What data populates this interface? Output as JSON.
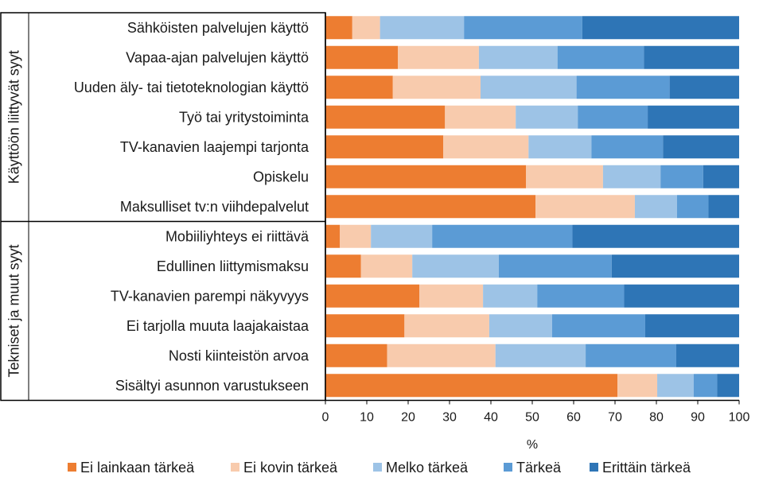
{
  "chart_data": {
    "type": "bar",
    "orientation": "horizontal",
    "stacked": true,
    "title": "",
    "xlabel": "%",
    "ylabel": "",
    "xlim": [
      0,
      100
    ],
    "xticks": [
      0,
      10,
      20,
      30,
      40,
      50,
      60,
      70,
      80,
      90,
      100
    ],
    "grid": false,
    "legend_position": "bottom",
    "groups": [
      {
        "label": "Käyttöön liittyvät syyt",
        "categories": [
          "Sähköisten palvelujen käyttö",
          "Vapaa-ajan palvelujen käyttö",
          "Uuden äly- tai tietoteknologian käyttö",
          "Työ tai yritystoiminta",
          "TV-kanavien laajempi tarjonta",
          "Opiskelu",
          "Maksulliset tv:n viihdepalvelut"
        ]
      },
      {
        "label": "Tekniset ja muut syyt",
        "categories": [
          "Mobiiliyhteys ei riittävä",
          "Edullinen liittymismaksu",
          "TV-kanavien parempi näkyvyys",
          "Ei tarjolla muuta laajakaistaa",
          "Nosti kiinteistön arvoa",
          "Sisältyi asunnon varustukseen"
        ]
      }
    ],
    "categories": [
      "Sähköisten palvelujen käyttö",
      "Vapaa-ajan palvelujen käyttö",
      "Uuden äly- tai tietoteknologian käyttö",
      "Työ tai yritystoiminta",
      "TV-kanavien laajempi tarjonta",
      "Opiskelu",
      "Maksulliset tv:n viihdepalvelut",
      "Mobiiliyhteys ei riittävä",
      "Edullinen liittymismaksu",
      "TV-kanavien parempi näkyvyys",
      "Ei tarjolla muuta laajakaistaa",
      "Nosti kiinteistön arvoa",
      "Sisältyi asunnon varustukseen"
    ],
    "series": [
      {
        "name": "Ei lainkaan tärkeä",
        "color": "#ED7D31",
        "values": [
          6.5,
          17.5,
          16.3,
          28.9,
          28.5,
          48.5,
          50.8,
          3.5,
          8.6,
          22.7,
          19.1,
          14.9,
          70.6
        ]
      },
      {
        "name": "Ei kovin tärkeä",
        "color": "#F8CBAD",
        "values": [
          6.7,
          19.6,
          21.2,
          17.1,
          20.6,
          18.6,
          24.0,
          7.5,
          12.4,
          15.4,
          20.5,
          26.2,
          9.6
        ]
      },
      {
        "name": "Melko tärkeä",
        "color": "#9DC3E6",
        "values": [
          20.3,
          19.0,
          23.2,
          15.0,
          15.2,
          13.9,
          10.2,
          14.8,
          20.9,
          13.1,
          15.2,
          21.8,
          8.8
        ]
      },
      {
        "name": "Tärkeä",
        "color": "#5B9BD5",
        "values": [
          28.6,
          20.9,
          22.5,
          16.9,
          17.3,
          10.3,
          7.6,
          33.9,
          27.3,
          21.0,
          22.5,
          21.9,
          5.7
        ]
      },
      {
        "name": "Erittäin tärkeä",
        "color": "#2E75B6",
        "values": [
          37.9,
          23.0,
          16.8,
          22.1,
          18.4,
          8.7,
          7.4,
          40.3,
          30.8,
          27.8,
          22.7,
          15.2,
          5.3
        ]
      }
    ]
  }
}
